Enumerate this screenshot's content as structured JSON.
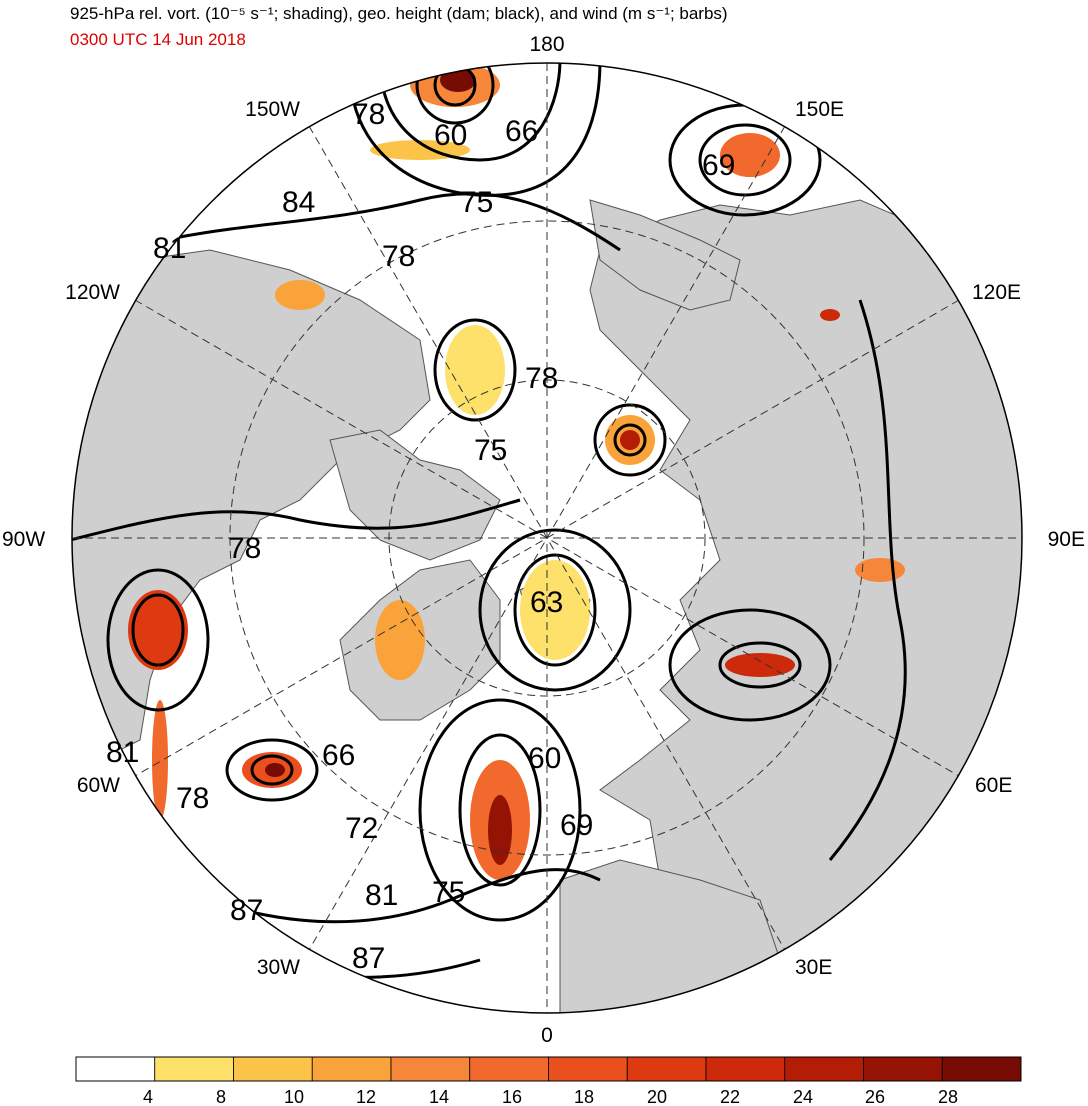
{
  "title": "925-hPa rel. vort. (10⁻⁵ s⁻¹; shading), geo. height (dam; black), and wind (m s⁻¹; barbs)",
  "subtitle": "0300 UTC 14 Jun 2018",
  "colors": {
    "land": "#cfcfcf",
    "ocean": "#ffffff",
    "contour": "#000000",
    "subtitle": "#e00000"
  },
  "longitude_labels": [
    "180",
    "150E",
    "120E",
    "90E",
    "60E",
    "30E",
    "0",
    "30W",
    "60W",
    "90W",
    "120W",
    "150W"
  ],
  "height_labels": [
    "78",
    "60",
    "66",
    "69",
    "84",
    "75",
    "81",
    "78",
    "78",
    "75",
    "78",
    "63",
    "81",
    "66",
    "60",
    "78",
    "72",
    "69",
    "87",
    "81",
    "75",
    "87"
  ],
  "colorbar": {
    "ticks": [
      "4",
      "8",
      "10",
      "12",
      "14",
      "16",
      "18",
      "20",
      "22",
      "24",
      "26",
      "28"
    ],
    "colors": [
      "#ffffff",
      "#fde16a",
      "#fbc347",
      "#f9a33a",
      "#f5863a",
      "#f1692c",
      "#e9501e",
      "#dd3a12",
      "#cc2a0a",
      "#b31d06",
      "#951304",
      "#760c03"
    ]
  }
}
